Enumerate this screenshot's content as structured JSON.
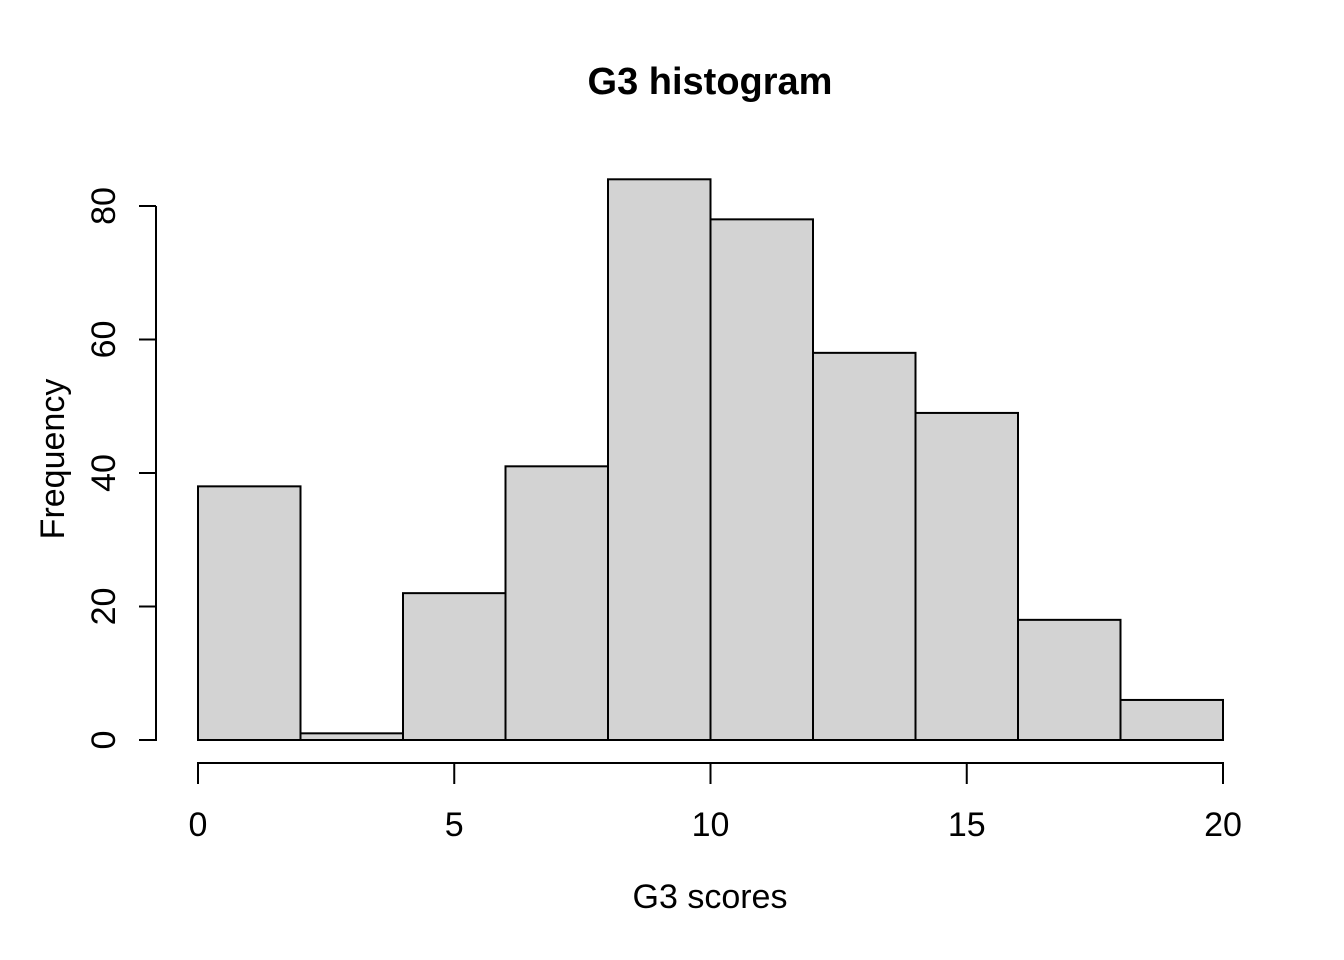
{
  "chart_data": {
    "type": "bar",
    "subtype": "histogram",
    "title": "G3 histogram",
    "xlabel": "G3 scores",
    "ylabel": "Frequency",
    "bin_edges": [
      0,
      2,
      4,
      6,
      8,
      10,
      12,
      14,
      16,
      18,
      20
    ],
    "counts": [
      38,
      1,
      22,
      41,
      84,
      78,
      58,
      49,
      18,
      6
    ],
    "x_ticks": [
      0,
      5,
      10,
      15,
      20
    ],
    "y_ticks": [
      0,
      20,
      40,
      60,
      80
    ],
    "xlim": [
      0,
      20
    ],
    "ylim": [
      0,
      84
    ],
    "grid": false,
    "legend": "none",
    "bar_fill": "#d3d3d3",
    "bar_stroke": "#000000",
    "text_color": "#000000",
    "background": "#ffffff"
  }
}
